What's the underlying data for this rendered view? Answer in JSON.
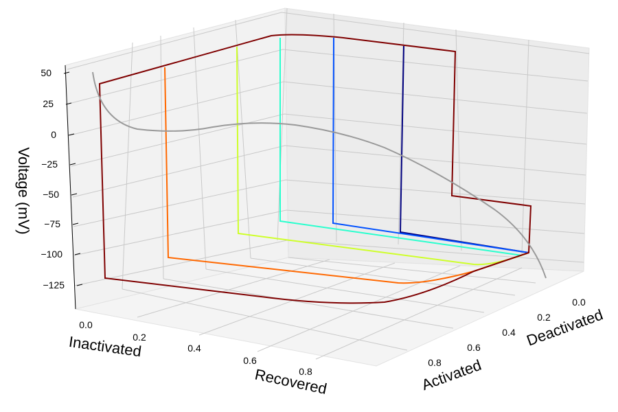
{
  "chart_data": {
    "type": "line",
    "projection": "3d",
    "xlabel": "Deactivated",
    "ylabel": "Activated",
    "zlabel": "Voltage (mV)",
    "extra_axis_label_1": "Inactivated",
    "extra_axis_label_2": "Recovered",
    "z_ticks": [
      "50",
      "25",
      "0",
      "−25",
      "−50",
      "−75",
      "−100",
      "−125"
    ],
    "deactivated_ticks": [
      "0.0",
      "0.2",
      "0.4",
      "0.6",
      "0.8"
    ],
    "activated_ticks": [
      "0.0",
      "0.2",
      "0.4",
      "0.6",
      "0.8"
    ],
    "inactivated_recovered_ticks": [
      "0.0",
      "0.2",
      "0.4",
      "0.6",
      "0.8"
    ],
    "grid": true,
    "series_colors": [
      "#00007f",
      "#0050ff",
      "#29ffce",
      "#ceff29",
      "#ff6800",
      "#7f0000"
    ],
    "trajectory_color": "#999999"
  }
}
